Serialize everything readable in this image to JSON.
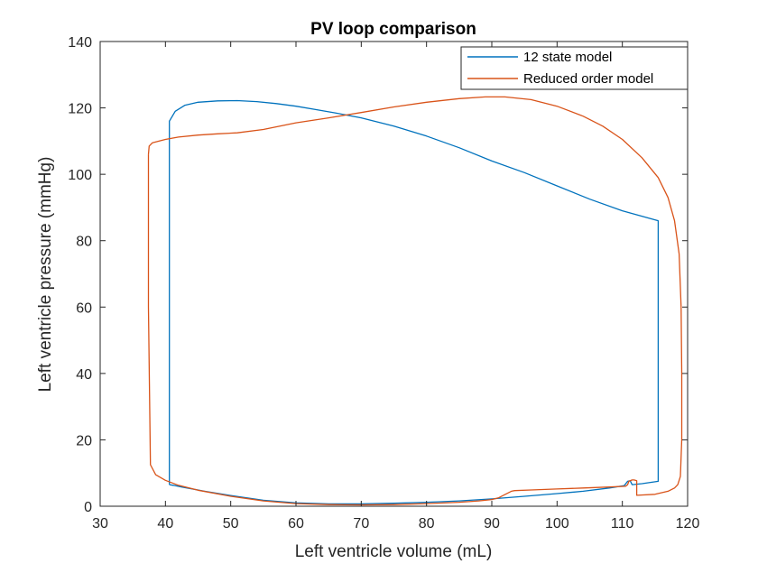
{
  "chart_data": {
    "type": "line",
    "title": "PV loop comparison",
    "xlabel": "Left ventricle volume (mL)",
    "ylabel": "Left ventricle pressure (mmHg)",
    "xlim": [
      30,
      120
    ],
    "ylim": [
      0,
      140
    ],
    "xticks": [
      "30",
      "40",
      "50",
      "60",
      "70",
      "80",
      "90",
      "100",
      "110",
      "120"
    ],
    "yticks": [
      "0",
      "20",
      "40",
      "60",
      "80",
      "100",
      "120",
      "140"
    ],
    "grid": false,
    "legend_position": "top-right",
    "series": [
      {
        "name": "12 state model",
        "color": "#0072BD",
        "x": [
          40.6,
          40.6,
          41.5,
          43,
          45,
          48,
          51,
          54,
          57,
          60,
          63,
          66,
          70,
          75,
          80,
          85,
          90,
          95,
          100,
          105,
          110,
          115.5,
          115.5,
          115.5,
          113,
          111.5,
          111.2,
          110.8,
          110.3,
          108,
          104,
          100,
          95,
          90,
          85,
          80,
          75,
          70,
          65,
          60,
          55,
          50,
          46,
          42.5,
          41.2,
          40.6,
          40.6
        ],
        "y": [
          6.5,
          116,
          119,
          120.8,
          121.7,
          122.1,
          122.2,
          121.9,
          121.3,
          120.5,
          119.5,
          118.5,
          117,
          114.5,
          111.5,
          108,
          104,
          100.5,
          96.5,
          92.5,
          89,
          86,
          40,
          7.5,
          6.8,
          6.5,
          7.7,
          7.5,
          6.2,
          5.5,
          4.5,
          3.8,
          3,
          2.2,
          1.6,
          1.2,
          0.9,
          0.7,
          0.7,
          1,
          1.8,
          3.2,
          4.5,
          5.8,
          6.3,
          6.5,
          6.5
        ]
      },
      {
        "name": "Reduced order model",
        "color": "#D95319",
        "x": [
          37.4,
          37.5,
          38,
          40,
          42,
          45,
          48,
          51,
          55,
          60,
          65,
          70,
          75,
          80,
          85,
          89,
          92,
          96,
          100,
          104,
          107,
          110,
          113,
          115.5,
          117,
          118,
          118.7,
          119,
          119.1,
          119.1,
          118.9,
          118.5,
          118,
          117,
          115,
          112.2,
          112.2,
          111.8,
          111.5,
          111,
          110.8,
          110.5,
          108,
          104,
          100,
          96,
          93.5,
          93,
          92,
          91,
          90,
          88,
          85,
          80,
          75,
          70,
          65,
          60,
          55,
          50,
          45,
          42,
          40,
          38.5,
          37.7,
          37.4,
          37.4
        ],
        "y": [
          106,
          108.5,
          109.5,
          110.5,
          111.2,
          111.8,
          112.2,
          112.5,
          113.5,
          115.5,
          117,
          118.6,
          120.3,
          121.7,
          122.8,
          123.3,
          123.3,
          122.5,
          120.5,
          117.5,
          114.5,
          110.5,
          105,
          99,
          93,
          86,
          76,
          60,
          40,
          20,
          9,
          6.5,
          5.5,
          4.5,
          3.6,
          3.3,
          7.7,
          7.9,
          7.9,
          7.5,
          6.5,
          6,
          5.8,
          5.5,
          5.2,
          4.9,
          4.7,
          4.5,
          3.5,
          2.5,
          2,
          1.6,
          1.2,
          0.8,
          0.5,
          0.4,
          0.5,
          0.8,
          1.6,
          3,
          4.8,
          6.3,
          7.8,
          9.5,
          12.5,
          60,
          106
        ]
      }
    ]
  }
}
